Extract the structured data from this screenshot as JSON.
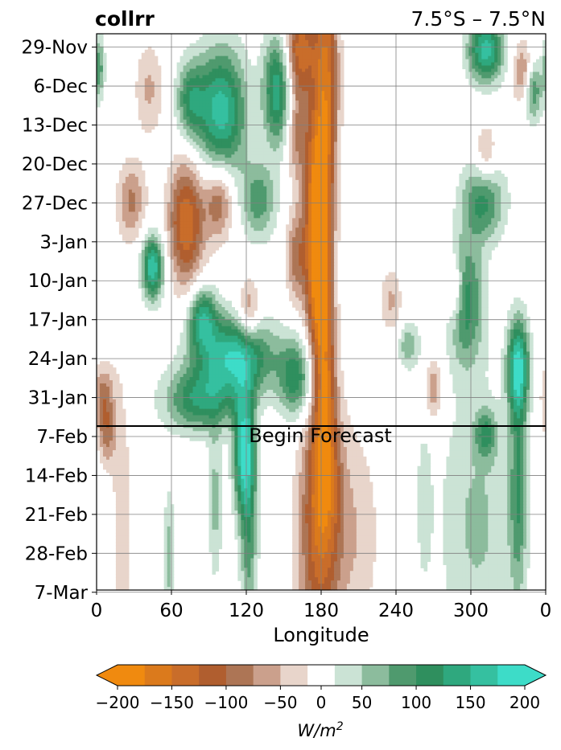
{
  "chart_data": {
    "type": "heatmap",
    "title_left": "collrr",
    "title_right": "7.5°S – 7.5°N",
    "xlabel": "Longitude",
    "x_ticks": [
      "0",
      "60",
      "120",
      "180",
      "240",
      "300",
      "0"
    ],
    "y_ticks": [
      "29-Nov",
      "6-Dec",
      "13-Dec",
      "20-Dec",
      "27-Dec",
      "3-Jan",
      "10-Jan",
      "17-Jan",
      "24-Jan",
      "31-Jan",
      "7-Feb",
      "14-Feb",
      "21-Feb",
      "28-Feb",
      "7-Mar"
    ],
    "forecast_label": "Begin Forecast",
    "forecast_start_day": 70.5,
    "grid": true,
    "colorbar": {
      "label": "W/m",
      "label_exponent": "2",
      "ticks": [
        "−200",
        "−150",
        "−100",
        "−50",
        "0",
        "50",
        "100",
        "150",
        "200"
      ],
      "levels": [
        -200,
        -175,
        -150,
        -125,
        -100,
        -75,
        -50,
        -25,
        25,
        50,
        75,
        100,
        125,
        150,
        175,
        200
      ],
      "colors": [
        "#f08a0f",
        "#db7a1c",
        "#c96d2a",
        "#b05e2f",
        "#ad7555",
        "#cba08c",
        "#e8d5cb",
        "#ffffff",
        "#cbe3d5",
        "#8cbc9d",
        "#4f9a6e",
        "#2f8f5e",
        "#2fa87e",
        "#35c0a0",
        "#3ddcc8"
      ],
      "under_color": "#f08a0f",
      "over_color": "#3ddcc8"
    },
    "features": [
      {
        "lon": 184,
        "day": 6,
        "sigLon": 7,
        "sigDay": 12,
        "value": -140
      },
      {
        "lon": 178,
        "day": 26,
        "sigLon": 8,
        "sigDay": 10,
        "value": -165
      },
      {
        "lon": 178,
        "day": 44,
        "sigLon": 7,
        "sigDay": 10,
        "value": -185
      },
      {
        "lon": 183,
        "day": 62,
        "sigLon": 6,
        "sigDay": 10,
        "value": -115
      },
      {
        "lon": 163,
        "day": 3,
        "sigLon": 9,
        "sigDay": 6,
        "value": -140
      },
      {
        "lon": 160,
        "day": 18,
        "sigLon": 6,
        "sigDay": 6,
        "value": -75
      },
      {
        "lon": 160,
        "day": 40,
        "sigLon": 6,
        "sigDay": 6,
        "value": -85
      },
      {
        "lon": 72,
        "day": 34,
        "sigLon": 10,
        "sigDay": 8,
        "value": -150
      },
      {
        "lon": 98,
        "day": 30,
        "sigLon": 8,
        "sigDay": 5,
        "value": -100
      },
      {
        "lon": 28,
        "day": 30,
        "sigLon": 8,
        "sigDay": 5,
        "value": -80
      },
      {
        "lon": 42,
        "day": 10,
        "sigLon": 8,
        "sigDay": 6,
        "value": -55
      },
      {
        "lon": 122,
        "day": 50,
        "sigLon": 6,
        "sigDay": 4,
        "value": -85
      },
      {
        "lon": 342,
        "day": 7,
        "sigLon": 6,
        "sigDay": 4,
        "value": -85
      },
      {
        "lon": 312,
        "day": 22,
        "sigLon": 6,
        "sigDay": 4,
        "value": -65
      },
      {
        "lon": 287,
        "day": 46,
        "sigLon": 5,
        "sigDay": 4,
        "value": -85
      },
      {
        "lon": 270,
        "day": 64,
        "sigLon": 5,
        "sigDay": 4,
        "value": -75
      },
      {
        "lon": 236,
        "day": 48,
        "sigLon": 6,
        "sigDay": 4,
        "value": -55
      },
      {
        "lon": 5,
        "day": 65,
        "sigLon": 6,
        "sigDay": 4,
        "value": -80
      },
      {
        "lon": 100,
        "day": 14,
        "sigLon": 14,
        "sigDay": 8,
        "value": 165
      },
      {
        "lon": 145,
        "day": 10,
        "sigLon": 8,
        "sigDay": 7,
        "value": 150
      },
      {
        "lon": 75,
        "day": 12,
        "sigLon": 8,
        "sigDay": 5,
        "value": 100
      },
      {
        "lon": 45,
        "day": 42,
        "sigLon": 6,
        "sigDay": 4,
        "value": 175
      },
      {
        "lon": 110,
        "day": 58,
        "sigLon": 22,
        "sigDay": 5,
        "value": 170
      },
      {
        "lon": 85,
        "day": 51,
        "sigLon": 8,
        "sigDay": 4,
        "value": 130
      },
      {
        "lon": 160,
        "day": 62,
        "sigLon": 10,
        "sigDay": 5,
        "value": 120
      },
      {
        "lon": 82,
        "day": 66,
        "sigLon": 20,
        "sigDay": 4,
        "value": 115
      },
      {
        "lon": 130,
        "day": 30,
        "sigLon": 10,
        "sigDay": 5,
        "value": 90
      },
      {
        "lon": 312,
        "day": 3,
        "sigLon": 10,
        "sigDay": 4,
        "value": 165
      },
      {
        "lon": 350,
        "day": 10,
        "sigLon": 5,
        "sigDay": 4,
        "value": 110
      },
      {
        "lon": 2,
        "day": 6,
        "sigLon": 3,
        "sigDay": 4,
        "value": 90
      },
      {
        "lon": 310,
        "day": 30,
        "sigLon": 12,
        "sigDay": 5,
        "value": 110
      },
      {
        "lon": 296,
        "day": 48,
        "sigLon": 10,
        "sigDay": 8,
        "value": 115
      },
      {
        "lon": 338,
        "day": 60,
        "sigLon": 6,
        "sigDay": 6,
        "value": 175
      },
      {
        "lon": 250,
        "day": 56,
        "sigLon": 6,
        "sigDay": 3,
        "value": 70
      },
      {
        "lon": 312,
        "day": 72,
        "sigLon": 6,
        "sigDay": 3,
        "value": 85
      },
      {
        "lon": 118,
        "day": 75,
        "sigLon": 6,
        "sigDay": 8,
        "value": 165
      },
      {
        "lon": 122,
        "day": 90,
        "sigLon": 5,
        "sigDay": 14,
        "value": 85
      },
      {
        "lon": 95,
        "day": 84,
        "sigLon": 4,
        "sigDay": 10,
        "value": 60
      },
      {
        "lon": 58,
        "day": 94,
        "sigLon": 3,
        "sigDay": 9,
        "value": 60
      },
      {
        "lon": 183,
        "day": 80,
        "sigLon": 9,
        "sigDay": 10,
        "value": -90
      },
      {
        "lon": 178,
        "day": 92,
        "sigLon": 12,
        "sigDay": 18,
        "value": -115
      },
      {
        "lon": 208,
        "day": 90,
        "sigLon": 14,
        "sigDay": 14,
        "value": -45
      },
      {
        "lon": 20,
        "day": 88,
        "sigLon": 7,
        "sigDay": 25,
        "value": -35
      },
      {
        "lon": 8,
        "day": 72,
        "sigLon": 5,
        "sigDay": 4,
        "value": -75
      },
      {
        "lon": 305,
        "day": 88,
        "sigLon": 22,
        "sigDay": 18,
        "value": 55
      },
      {
        "lon": 338,
        "day": 82,
        "sigLon": 5,
        "sigDay": 14,
        "value": 90
      },
      {
        "lon": 262,
        "day": 84,
        "sigLon": 5,
        "sigDay": 12,
        "value": 30
      }
    ]
  }
}
